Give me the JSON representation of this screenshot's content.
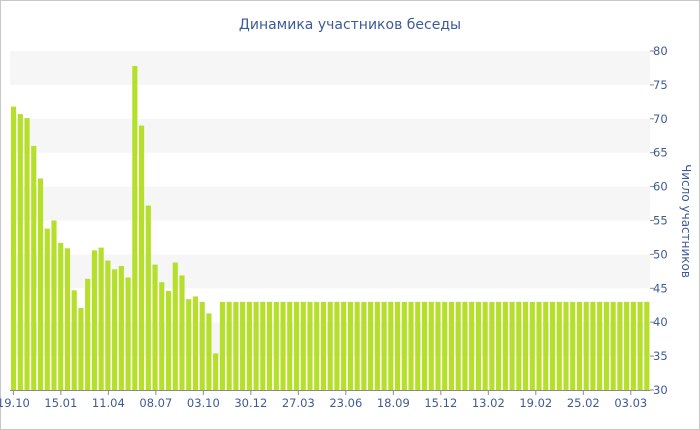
{
  "chart_data": {
    "type": "bar",
    "title": "Динамика участников беседы",
    "xlabel": "",
    "ylabel": "Число участников",
    "ylim": [
      30,
      80
    ],
    "yticks": [
      30,
      35,
      40,
      45,
      50,
      55,
      60,
      65,
      70,
      75,
      80
    ],
    "grid": "horizontal alternating bands",
    "x_tick_labels": [
      "19.10",
      "15.01",
      "11.04",
      "08.07",
      "03.10",
      "30.12",
      "27.03",
      "23.06",
      "18.09",
      "15.12",
      "13.02",
      "19.02",
      "25.02",
      "03.03"
    ],
    "bar_color": "#b5df2a",
    "values": [
      71.8,
      70.7,
      70.1,
      66.0,
      61.2,
      53.8,
      55.0,
      51.7,
      50.9,
      44.7,
      42.1,
      46.4,
      50.6,
      51.0,
      49.1,
      47.8,
      48.3,
      46.6,
      77.8,
      69.0,
      57.2,
      48.5,
      45.9,
      44.6,
      48.8,
      46.9,
      43.4,
      43.8,
      43.0,
      41.3,
      35.4,
      43.0,
      43.0,
      43.0,
      43.0,
      43.0,
      43.0,
      43.0,
      43.0,
      43.0,
      43.0,
      43.0,
      43.0,
      43.0,
      43.0,
      43.0,
      43.0,
      43.0,
      43.0,
      43.0,
      43.0,
      43.0,
      43.0,
      43.0,
      43.0,
      43.0,
      43.0,
      43.0,
      43.0,
      43.0,
      43.0,
      43.0,
      43.0,
      43.0,
      43.0,
      43.0,
      43.0,
      43.0,
      43.0,
      43.0,
      43.0,
      43.0,
      43.0,
      43.0,
      43.0,
      43.0,
      43.0,
      43.0,
      43.0,
      43.0,
      43.0,
      43.0,
      43.0,
      43.0,
      43.0,
      43.0,
      43.0,
      43.0,
      43.0,
      43.0,
      43.0,
      43.0,
      43.0,
      43.0,
      43.0
    ]
  }
}
